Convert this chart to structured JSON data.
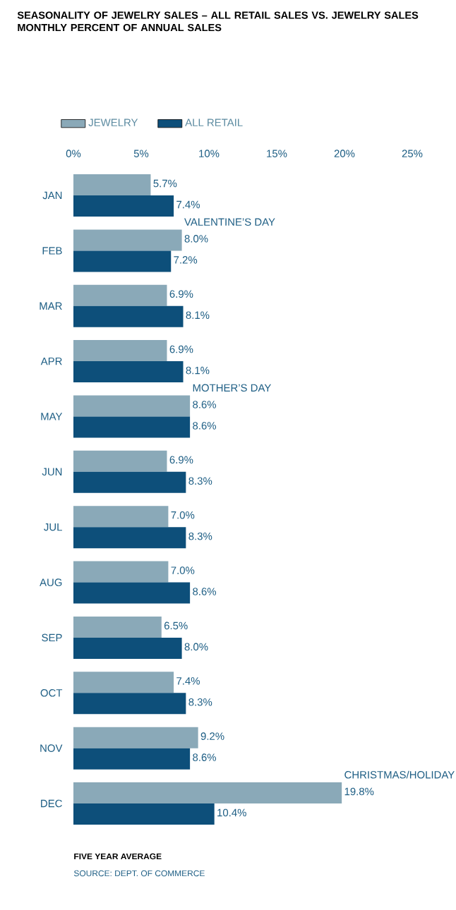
{
  "chart_data": {
    "type": "bar",
    "orientation": "horizontal",
    "title": "SEASONALITY OF JEWELRY SALES – ALL RETAIL SALES VS. JEWELRY SALES",
    "subtitle": "MONTHLY PERCENT OF ANNUAL SALES",
    "categories": [
      "JAN",
      "FEB",
      "MAR",
      "APR",
      "MAY",
      "JUN",
      "JUL",
      "AUG",
      "SEP",
      "OCT",
      "NOV",
      "DEC"
    ],
    "series": [
      {
        "name": "JEWELRY",
        "color": "#8aa9b8",
        "values": [
          5.7,
          8.0,
          6.9,
          6.9,
          8.6,
          6.9,
          7.0,
          7.0,
          6.5,
          7.4,
          9.2,
          19.8
        ],
        "value_labels": [
          "5.7%",
          "8.0%",
          "6.9%",
          "6.9%",
          "8.6%",
          "6.9%",
          "7.0%",
          "7.0%",
          "6.5%",
          "7.4%",
          "9.2%",
          "19.8%"
        ]
      },
      {
        "name": "ALL RETAIL",
        "color": "#0d4f7a",
        "values": [
          7.4,
          7.2,
          8.1,
          8.1,
          8.6,
          8.3,
          8.3,
          8.6,
          8.0,
          8.3,
          8.6,
          10.4
        ],
        "value_labels": [
          "7.4%",
          "7.2%",
          "8.1%",
          "8.1%",
          "8.6%",
          "8.3%",
          "8.3%",
          "8.6%",
          "8.0%",
          "8.3%",
          "8.6%",
          "10.4%"
        ]
      }
    ],
    "xlim": [
      0,
      25
    ],
    "xticks": [
      {
        "value": 0,
        "label": "0%"
      },
      {
        "value": 5,
        "label": "5%"
      },
      {
        "value": 10,
        "label": "10%"
      },
      {
        "value": 15,
        "label": "15%"
      },
      {
        "value": 20,
        "label": "20%"
      },
      {
        "value": 25,
        "label": "25%"
      }
    ],
    "legend": "top",
    "grid": false,
    "annotations": [
      "VALENTINE’S DAY",
      "MOTHER’S DAY",
      "CHRISTMAS/HOLIDAY",
      "FIVE YEAR AVERAGE",
      "SOURCE: DEPT. OF COMMERCE"
    ]
  }
}
